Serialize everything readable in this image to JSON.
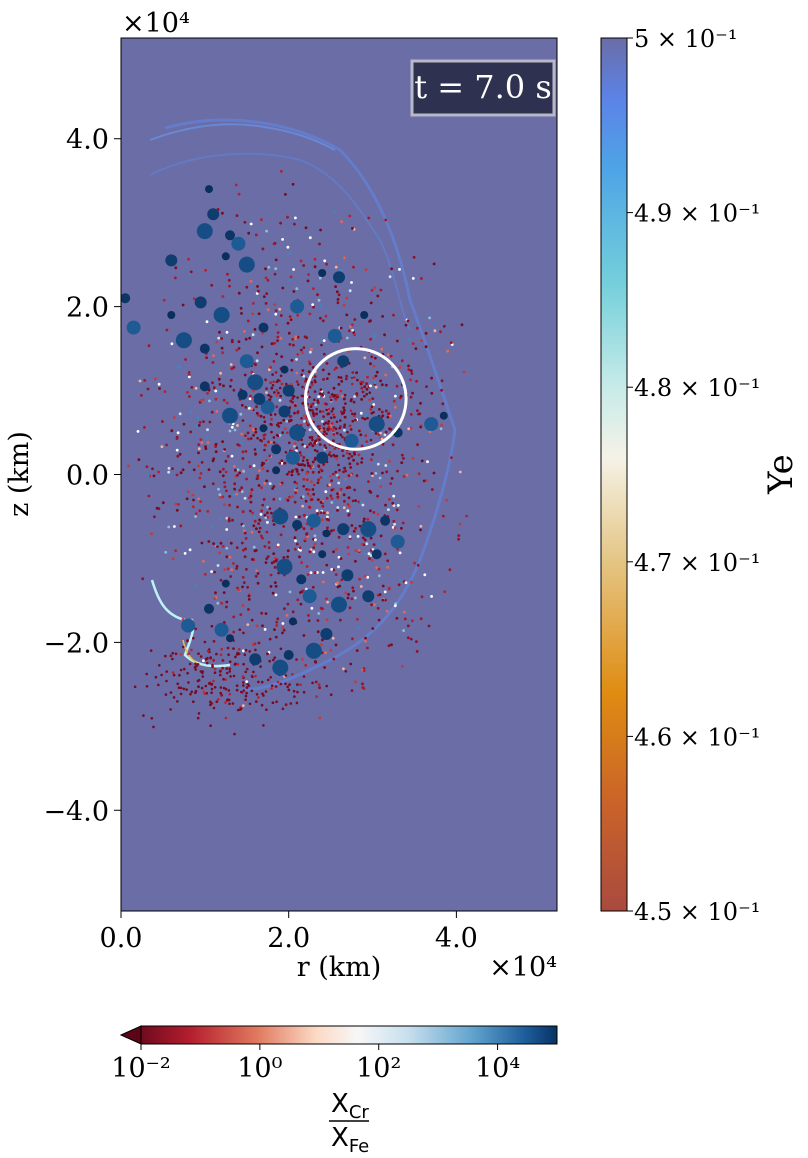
{
  "chart_data": {
    "type": "scatter",
    "title": "",
    "annotation": "t = 7.0 s",
    "xlabel": "r (km)",
    "ylabel": "z (km)",
    "x_multiplier": "×10⁴",
    "y_multiplier": "×10⁴",
    "x_ticks": [
      "0.0",
      "2.0",
      "4.0"
    ],
    "y_ticks": [
      "4.0",
      "2.0",
      "0.0",
      "−2.0",
      "−4.0"
    ],
    "xlim": [
      0.0,
      5.2
    ],
    "ylim": [
      -5.2,
      5.2
    ],
    "background_ye": 0.5,
    "highlight_circle": {
      "center": [
        2.8,
        0.9
      ],
      "radius": 0.6
    },
    "colorbar_ye": {
      "label": "Ye",
      "range": [
        0.45,
        0.5
      ],
      "ticks": [
        "5 × 10⁻¹",
        "4.9 × 10⁻¹",
        "4.8 × 10⁻¹",
        "4.7 × 10⁻¹",
        "4.6 × 10⁻¹",
        "4.5 × 10⁻¹"
      ],
      "tick_values": [
        0.5,
        0.49,
        0.48,
        0.47,
        0.46,
        0.45
      ]
    },
    "colorbar_ratio": {
      "label_numerator": "X",
      "label_numerator_sub": "Cr",
      "label_denominator": "X",
      "label_denominator_sub": "Fe",
      "scale": "log",
      "range_exp": [
        -2,
        5
      ],
      "ticks": [
        "10⁻²",
        "10⁰",
        "10²",
        "10⁴"
      ],
      "tick_exps": [
        -2,
        0,
        2,
        4
      ]
    },
    "large_particles": [
      [
        1.05,
        3.4
      ],
      [
        1.1,
        3.1
      ],
      [
        1.0,
        2.9
      ],
      [
        1.3,
        2.85
      ],
      [
        1.4,
        2.75
      ],
      [
        1.25,
        2.6
      ],
      [
        0.6,
        2.55
      ],
      [
        1.5,
        2.5
      ],
      [
        0.05,
        2.1
      ],
      [
        0.15,
        1.75
      ],
      [
        0.6,
        1.9
      ],
      [
        0.95,
        2.05
      ],
      [
        1.2,
        1.9
      ],
      [
        1.7,
        1.75
      ],
      [
        2.1,
        2.0
      ],
      [
        2.4,
        2.4
      ],
      [
        2.6,
        2.35
      ],
      [
        0.75,
        1.6
      ],
      [
        1.0,
        1.5
      ],
      [
        1.5,
        1.35
      ],
      [
        1.95,
        1.25
      ],
      [
        2.0,
        1.0
      ],
      [
        1.6,
        1.1
      ],
      [
        1.45,
        0.95
      ],
      [
        1.75,
        0.8
      ],
      [
        1.7,
        0.55
      ],
      [
        1.95,
        0.75
      ],
      [
        2.1,
        0.5
      ],
      [
        1.85,
        0.3
      ],
      [
        2.05,
        0.2
      ],
      [
        1.85,
        0.05
      ],
      [
        1.65,
        0.9
      ],
      [
        1.3,
        0.7
      ],
      [
        1.0,
        1.05
      ],
      [
        2.55,
        1.65
      ],
      [
        2.9,
        1.9
      ],
      [
        2.65,
        1.35
      ],
      [
        3.05,
        0.6
      ],
      [
        3.3,
        0.5
      ],
      [
        3.7,
        0.6
      ],
      [
        3.85,
        0.7
      ],
      [
        2.4,
        0.2
      ],
      [
        1.9,
        -0.5
      ],
      [
        2.1,
        -0.6
      ],
      [
        2.3,
        -0.55
      ],
      [
        2.45,
        -0.7
      ],
      [
        2.65,
        -0.65
      ],
      [
        2.95,
        -0.65
      ],
      [
        3.15,
        -0.55
      ],
      [
        3.3,
        -0.8
      ],
      [
        2.4,
        -0.95
      ],
      [
        2.7,
        -1.2
      ],
      [
        1.95,
        -1.1
      ],
      [
        2.15,
        -1.25
      ],
      [
        2.25,
        -1.45
      ],
      [
        2.05,
        -1.75
      ],
      [
        2.45,
        -1.9
      ],
      [
        2.3,
        -2.1
      ],
      [
        1.05,
        -1.6
      ],
      [
        1.2,
        -1.85
      ],
      [
        1.3,
        -1.95
      ],
      [
        1.6,
        -2.2
      ],
      [
        1.9,
        -2.3
      ],
      [
        2.0,
        -2.15
      ],
      [
        0.8,
        -1.8
      ],
      [
        1.25,
        -1.3
      ],
      [
        2.95,
        -1.45
      ],
      [
        2.6,
        -1.55
      ],
      [
        3.05,
        -0.95
      ],
      [
        2.75,
        0.4
      ]
    ]
  }
}
